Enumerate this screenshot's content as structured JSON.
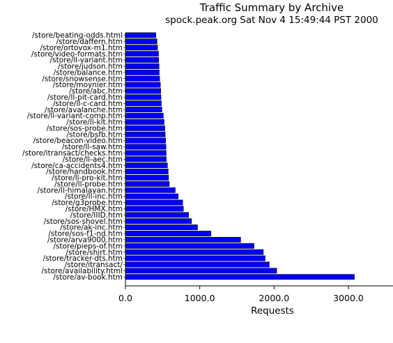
{
  "title": "Traffic Summary by Archive",
  "subtitle": "spock.peak.org Sat Nov  4 15:49:44 PST 2000",
  "chart_data": {
    "type": "bar",
    "orientation": "horizontal",
    "title": "Traffic Summary by Archive",
    "subtitle": "spock.peak.org Sat Nov  4 15:49:44 PST 2000",
    "xlabel": "Requests",
    "ylabel": "",
    "xlim": [
      0,
      3600
    ],
    "x_ticks": [
      0,
      1000,
      2000,
      3000
    ],
    "x_tick_labels": [
      "0.0",
      "1000.0",
      "2000.0",
      "3000.0"
    ],
    "grid": false,
    "bar_color": "#0000ff",
    "categories": [
      "/store/beating-odds.html",
      "/store/daffern.htm",
      "/store/ortovox-m1.htm",
      "/store/video-formats.htm",
      "/store/ll-variant.htm",
      "/store/judson.htm",
      "/store/balance.htm",
      "/store/snowsense.htm",
      "/store/moynier.htm",
      "/store/abc.htm",
      "/store/ll-pit-card.htm",
      "/store/ll-c-card.htm",
      "/store/avalanche.htm",
      "/store/ll-variant-comp.htm",
      "/store/ll-kit.htm",
      "/store/sos-probe.htm",
      "/store/bsfb.htm",
      "/store/beacon-video.htm",
      "/store/ll-saw.htm",
      "/store/itransact/checks.htm",
      "/store/ll-aec.htm",
      "/store/ca-accidents4.htm",
      "/store/handbook.htm",
      "/store/ll-pro-kit.htm",
      "/store/ll-probe.htm",
      "/store/ll-himalayan.htm",
      "/store/ll-inc.htm",
      "/store/g3probe.htm",
      "/store/HMX.htm",
      "/store/IIID.htm",
      "/store/sos-shovel.htm",
      "/store/ak-inc.htm",
      "/store/sos-f1-nd.htm",
      "/store/arva9000.htm",
      "/store/pieps-of.htm",
      "/store/shirt.htm",
      "/store/tracker-dts.htm",
      "/store/itransact/",
      "/store/availability.html",
      "/store/av-book.htm"
    ],
    "values": [
      410,
      425,
      432,
      445,
      448,
      452,
      455,
      460,
      470,
      475,
      478,
      483,
      490,
      510,
      520,
      530,
      535,
      540,
      545,
      548,
      550,
      565,
      575,
      580,
      590,
      670,
      710,
      770,
      780,
      850,
      890,
      970,
      1150,
      1550,
      1730,
      1855,
      1880,
      1935,
      2035,
      3080
    ]
  }
}
